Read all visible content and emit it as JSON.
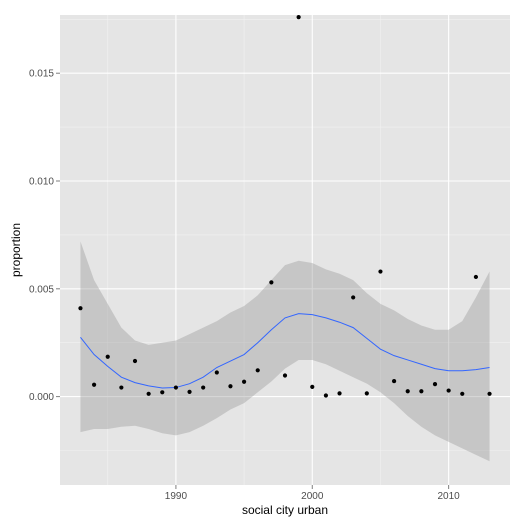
{
  "chart_data": {
    "type": "scatter",
    "title": "",
    "xlabel": "social city urban",
    "ylabel": "proportion",
    "xlim": [
      1981.5,
      2014.5
    ],
    "ylim": [
      -0.0041,
      0.0177
    ],
    "x_ticks": [
      1990,
      2000,
      2010
    ],
    "x_tick_labels": [
      "1990",
      "2000",
      "2010"
    ],
    "y_ticks": [
      0.0,
      0.005,
      0.01,
      0.015
    ],
    "y_tick_labels": [
      "0.000",
      "0.005",
      "0.010",
      "0.015"
    ],
    "grid": true,
    "legend": "none",
    "colors": {
      "panel": "#e5e5e5",
      "grid_major": "#ffffff",
      "points": "#000000",
      "smooth_line": "#3366ff",
      "ribbon": "#999999"
    },
    "points": {
      "x": [
        1983,
        1984,
        1985,
        1986,
        1987,
        1988,
        1989,
        1990,
        1991,
        1992,
        1993,
        1994,
        1995,
        1996,
        1997,
        1998,
        1999,
        2000,
        2001,
        2002,
        2003,
        2004,
        2005,
        2006,
        2007,
        2008,
        2009,
        2010,
        2011,
        2012,
        2013
      ],
      "y": [
        0.0041,
        0.00055,
        0.00185,
        0.00042,
        0.00165,
        0.00013,
        0.0002,
        0.00042,
        0.00022,
        0.00042,
        0.00112,
        0.00048,
        0.00069,
        0.00122,
        0.0053,
        0.00098,
        0.0176,
        0.00045,
        5e-05,
        0.00015,
        0.0046,
        0.00015,
        0.0058,
        0.00072,
        0.00025,
        0.00025,
        0.00058,
        0.00028,
        0.00013,
        0.00555,
        0.00013
      ]
    },
    "smooth": {
      "x": [
        1983,
        1984,
        1985,
        1986,
        1987,
        1988,
        1989,
        1990,
        1991,
        1992,
        1993,
        1994,
        1995,
        1996,
        1997,
        1998,
        1999,
        2000,
        2001,
        2002,
        2003,
        2004,
        2005,
        2006,
        2007,
        2008,
        2009,
        2010,
        2011,
        2012,
        2013
      ],
      "y": [
        0.00275,
        0.00195,
        0.0014,
        0.0009,
        0.00065,
        0.0005,
        0.0004,
        0.00042,
        0.0006,
        0.0009,
        0.00135,
        0.00165,
        0.00195,
        0.0025,
        0.0031,
        0.00365,
        0.00385,
        0.0038,
        0.00365,
        0.00345,
        0.0032,
        0.0027,
        0.0022,
        0.0019,
        0.0017,
        0.0015,
        0.0013,
        0.0012,
        0.0012,
        0.00125,
        0.00135
      ],
      "lower": [
        -0.00165,
        -0.0015,
        -0.0015,
        -0.0014,
        -0.00135,
        -0.0015,
        -0.0017,
        -0.0018,
        -0.00165,
        -0.00135,
        -0.001,
        -0.0006,
        -0.0003,
        0.0002,
        0.0007,
        0.0013,
        0.0017,
        0.0017,
        0.0015,
        0.0012,
        0.0009,
        0.0006,
        0.0002,
        -0.0003,
        -0.0009,
        -0.0014,
        -0.0018,
        -0.0021,
        -0.0024,
        -0.0027,
        -0.003
      ],
      "upper": [
        0.0072,
        0.0054,
        0.0043,
        0.0032,
        0.0026,
        0.0024,
        0.0025,
        0.0026,
        0.0029,
        0.0032,
        0.0035,
        0.0039,
        0.0042,
        0.0047,
        0.0054,
        0.0061,
        0.0063,
        0.0062,
        0.0059,
        0.0057,
        0.0054,
        0.0048,
        0.0043,
        0.004,
        0.0036,
        0.0033,
        0.0031,
        0.0031,
        0.0035,
        0.0046,
        0.0058
      ]
    }
  }
}
